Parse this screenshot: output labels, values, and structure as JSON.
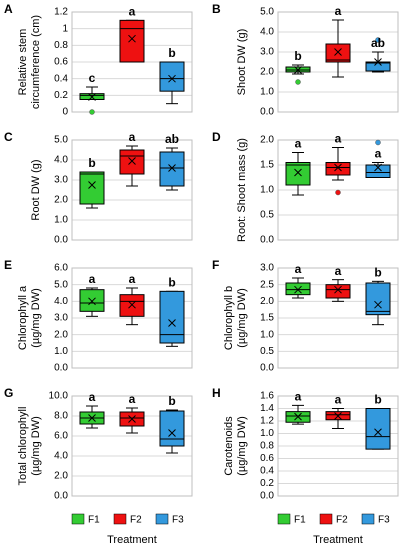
{
  "chart_data": [
    {
      "type": "box",
      "label": "A",
      "ylabel": [
        "Relative stem",
        "circumference (cm)"
      ],
      "categories": [
        "F1",
        "F2",
        "F3"
      ],
      "colors": [
        "#33cc33",
        "#ee1111",
        "#3399dd"
      ],
      "ylim": [
        0,
        1.2
      ],
      "yticks": [
        0,
        0.2,
        0.4,
        0.6,
        0.8,
        1,
        1.2
      ],
      "boxes": [
        {
          "whislo": 0.15,
          "q1": 0.15,
          "med": 0.2,
          "q3": 0.22,
          "whishi": 0.3,
          "mean": 0.18,
          "fliers": [
            0
          ]
        },
        {
          "whislo": 0.6,
          "q1": 0.6,
          "med": 1.0,
          "q3": 1.1,
          "whishi": 1.1,
          "mean": 0.88,
          "fliers": []
        },
        {
          "whislo": 0.1,
          "q1": 0.25,
          "med": 0.4,
          "q3": 0.6,
          "whishi": 0.6,
          "mean": 0.4,
          "fliers": []
        }
      ],
      "letters": [
        "c",
        "a",
        "b"
      ]
    },
    {
      "type": "box",
      "label": "B",
      "ylabel": [
        "Shoot DW (g)"
      ],
      "categories": [
        "F1",
        "F2",
        "F3"
      ],
      "colors": [
        "#33cc33",
        "#ee1111",
        "#3399dd"
      ],
      "ylim": [
        0,
        5
      ],
      "yticks": [
        {
          "value": 0,
          "label": "0.0"
        },
        {
          "value": 1,
          "label": "1.0"
        },
        {
          "value": 2,
          "label": "2.0"
        },
        {
          "value": 3,
          "label": "3.0"
        },
        {
          "value": 4,
          "label": "4.0"
        },
        {
          "value": 5,
          "label": "5.0"
        }
      ],
      "boxes": [
        {
          "whislo": 1.9,
          "q1": 2.0,
          "med": 2.1,
          "q3": 2.25,
          "whishi": 2.35,
          "mean": 2.1,
          "fliers": [
            1.5
          ]
        },
        {
          "whislo": 1.75,
          "q1": 2.5,
          "med": 2.6,
          "q3": 3.4,
          "whishi": 4.6,
          "mean": 3.0,
          "fliers": []
        },
        {
          "whislo": 2.0,
          "q1": 2.05,
          "med": 2.45,
          "q3": 2.5,
          "whishi": 3.0,
          "mean": 2.5,
          "fliers": [
            3.6
          ]
        }
      ],
      "letters": [
        "b",
        "a",
        "ab"
      ]
    },
    {
      "type": "box",
      "label": "C",
      "ylabel": [
        "Root DW (g)"
      ],
      "categories": [
        "F1",
        "F2",
        "F3"
      ],
      "colors": [
        "#33cc33",
        "#ee1111",
        "#3399dd"
      ],
      "ylim": [
        0,
        5
      ],
      "yticks": [
        {
          "value": 0,
          "label": "0.0"
        },
        {
          "value": 1,
          "label": "1.0"
        },
        {
          "value": 2,
          "label": "2.0"
        },
        {
          "value": 3,
          "label": "3.0"
        },
        {
          "value": 4,
          "label": "4.0"
        },
        {
          "value": 5,
          "label": "5.0"
        }
      ],
      "boxes": [
        {
          "whislo": 1.6,
          "q1": 1.8,
          "med": 3.3,
          "q3": 3.4,
          "whishi": 3.4,
          "mean": 2.75,
          "fliers": []
        },
        {
          "whislo": 2.7,
          "q1": 3.3,
          "med": 4.2,
          "q3": 4.5,
          "whishi": 4.7,
          "mean": 3.95,
          "fliers": []
        },
        {
          "whislo": 2.5,
          "q1": 2.7,
          "med": 3.6,
          "q3": 4.4,
          "whishi": 4.6,
          "mean": 3.6,
          "fliers": []
        }
      ],
      "letters": [
        "b",
        "a",
        "ab"
      ]
    },
    {
      "type": "box",
      "label": "D",
      "ylabel": [
        "Root: Shoot mass (g)"
      ],
      "categories": [
        "F1",
        "F2",
        "F3"
      ],
      "colors": [
        "#33cc33",
        "#ee1111",
        "#3399dd"
      ],
      "ylim": [
        0,
        2
      ],
      "yticks": [
        {
          "value": 0,
          "label": "0.0"
        },
        0.5,
        {
          "value": 1,
          "label": "1.0"
        },
        1.5,
        {
          "value": 2,
          "label": "2.0"
        }
      ],
      "boxes": [
        {
          "whislo": 0.9,
          "q1": 1.1,
          "med": 1.5,
          "q3": 1.55,
          "whishi": 1.75,
          "mean": 1.35,
          "fliers": []
        },
        {
          "whislo": 1.2,
          "q1": 1.3,
          "med": 1.45,
          "q3": 1.55,
          "whishi": 1.85,
          "mean": 1.45,
          "fliers": [
            0.95
          ]
        },
        {
          "whislo": 1.25,
          "q1": 1.25,
          "med": 1.35,
          "q3": 1.5,
          "whishi": 1.55,
          "mean": 1.45,
          "fliers": [
            1.95
          ]
        }
      ],
      "letters": [
        "a",
        "a",
        "a"
      ]
    },
    {
      "type": "box",
      "label": "E",
      "ylabel": [
        "Chlorophyll a",
        "(µg/mg DW)"
      ],
      "categories": [
        "F1",
        "F2",
        "F3"
      ],
      "colors": [
        "#33cc33",
        "#ee1111",
        "#3399dd"
      ],
      "ylim": [
        0,
        6
      ],
      "yticks": [
        {
          "value": 0,
          "label": "0.0"
        },
        {
          "value": 1,
          "label": "1.0"
        },
        {
          "value": 2,
          "label": "2.0"
        },
        {
          "value": 3,
          "label": "3.0"
        },
        {
          "value": 4,
          "label": "4.0"
        },
        {
          "value": 5,
          "label": "5.0"
        },
        {
          "value": 6,
          "label": "6.0"
        }
      ],
      "boxes": [
        {
          "whislo": 3.1,
          "q1": 3.4,
          "med": 3.9,
          "q3": 4.7,
          "whishi": 4.8,
          "mean": 4.0,
          "fliers": []
        },
        {
          "whislo": 2.6,
          "q1": 3.1,
          "med": 4.0,
          "q3": 4.4,
          "whishi": 4.8,
          "mean": 3.8,
          "fliers": []
        },
        {
          "whislo": 1.3,
          "q1": 1.5,
          "med": 2.0,
          "q3": 4.6,
          "whishi": 4.6,
          "mean": 2.7,
          "fliers": []
        }
      ],
      "letters": [
        "a",
        "a",
        "b"
      ]
    },
    {
      "type": "box",
      "label": "F",
      "ylabel": [
        "Chlorophyll b",
        "(µg/mg DW)"
      ],
      "categories": [
        "F1",
        "F2",
        "F3"
      ],
      "colors": [
        "#33cc33",
        "#ee1111",
        "#3399dd"
      ],
      "ylim": [
        0,
        3
      ],
      "yticks": [
        {
          "value": 0,
          "label": "0.0"
        },
        0.5,
        {
          "value": 1,
          "label": "1.0"
        },
        1.5,
        {
          "value": 2,
          "label": "2.0"
        },
        2.5,
        {
          "value": 3,
          "label": "3.0"
        }
      ],
      "boxes": [
        {
          "whislo": 2.1,
          "q1": 2.2,
          "med": 2.35,
          "q3": 2.55,
          "whishi": 2.7,
          "mean": 2.35,
          "fliers": []
        },
        {
          "whislo": 2.0,
          "q1": 2.1,
          "med": 2.35,
          "q3": 2.5,
          "whishi": 2.65,
          "mean": 2.35,
          "fliers": []
        },
        {
          "whislo": 1.3,
          "q1": 1.6,
          "med": 1.7,
          "q3": 2.55,
          "whishi": 2.6,
          "mean": 1.9,
          "fliers": []
        }
      ],
      "letters": [
        "a",
        "a",
        "b"
      ]
    },
    {
      "type": "box",
      "label": "G",
      "ylabel": [
        "Total chlorophyll",
        "(µg/mg DW)"
      ],
      "categories": [
        "F1",
        "F2",
        "F3"
      ],
      "colors": [
        "#33cc33",
        "#ee1111",
        "#3399dd"
      ],
      "ylim": [
        0,
        10
      ],
      "yticks": [
        {
          "value": 0,
          "label": "0.0"
        },
        {
          "value": 2,
          "label": "2.0"
        },
        {
          "value": 4,
          "label": "4.0"
        },
        {
          "value": 6,
          "label": "6.0"
        },
        {
          "value": 8,
          "label": "8.0"
        },
        {
          "value": 10,
          "label": "10.0"
        }
      ],
      "boxes": [
        {
          "whislo": 6.8,
          "q1": 7.2,
          "med": 7.8,
          "q3": 8.4,
          "whishi": 9.0,
          "mean": 7.8,
          "fliers": []
        },
        {
          "whislo": 6.3,
          "q1": 7.0,
          "med": 7.8,
          "q3": 8.4,
          "whishi": 8.8,
          "mean": 7.7,
          "fliers": []
        },
        {
          "whislo": 4.3,
          "q1": 5.0,
          "med": 5.7,
          "q3": 8.5,
          "whishi": 8.6,
          "mean": 6.3,
          "fliers": []
        }
      ],
      "letters": [
        "a",
        "a",
        "b"
      ]
    },
    {
      "type": "box",
      "label": "H",
      "ylabel": [
        "Carotenoids",
        "(µg/mg DW)"
      ],
      "categories": [
        "F1",
        "F2",
        "F3"
      ],
      "colors": [
        "#33cc33",
        "#ee1111",
        "#3399dd"
      ],
      "ylim": [
        0,
        1.6
      ],
      "yticks": [
        {
          "value": 0,
          "label": "0.0"
        },
        0.2,
        0.4,
        0.6,
        0.8,
        {
          "value": 1,
          "label": "1.0"
        },
        1.2,
        1.4,
        1.6
      ],
      "boxes": [
        {
          "whislo": 1.15,
          "q1": 1.18,
          "med": 1.28,
          "q3": 1.35,
          "whishi": 1.45,
          "mean": 1.27,
          "fliers": []
        },
        {
          "whislo": 1.08,
          "q1": 1.22,
          "med": 1.3,
          "q3": 1.35,
          "whishi": 1.4,
          "mean": 1.28,
          "fliers": []
        },
        {
          "whislo": 0.75,
          "q1": 0.75,
          "med": 0.95,
          "q3": 1.4,
          "whishi": 1.4,
          "mean": 1.02,
          "fliers": []
        }
      ],
      "letters": [
        "a",
        "a",
        "b"
      ]
    }
  ],
  "legend": {
    "names": [
      "F1",
      "F2",
      "F3"
    ],
    "colors": [
      "#33cc33",
      "#ee1111",
      "#3399dd"
    ]
  },
  "xlabel": "Treatment"
}
